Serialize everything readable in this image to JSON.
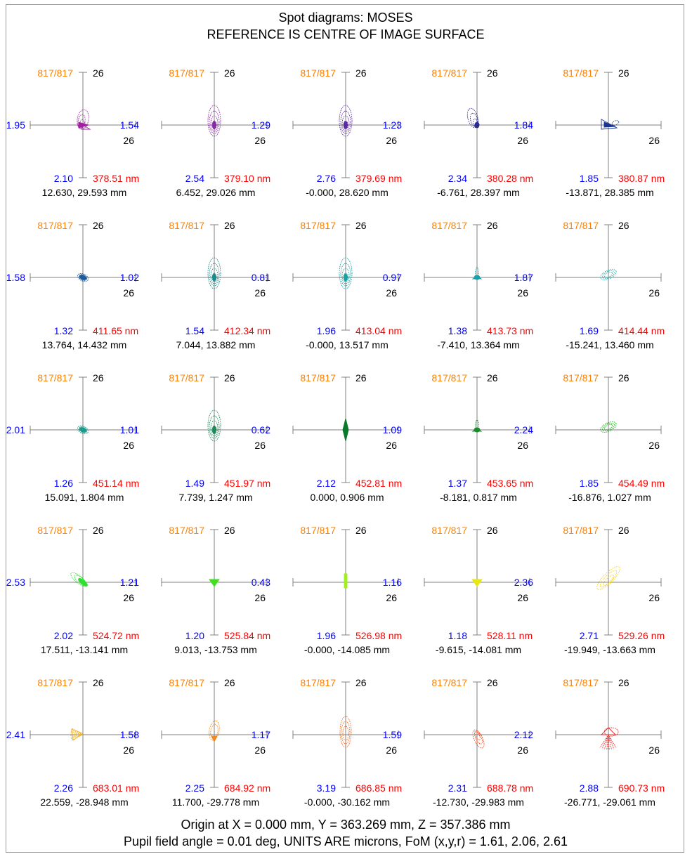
{
  "header": {
    "title": "Spot diagrams: MOSES",
    "subtitle": "REFERENCE IS CENTRE OF IMAGE SURFACE"
  },
  "footer": {
    "origin": "Origin at X =      0.000 mm, Y =    363.269 mm, Z =    357.386 mm",
    "pupil": "Pupil field angle =  0.01 deg, UNITS ARE microns, FoM (x,y,r) = 1.61, 2.06, 2.61"
  },
  "colors": {
    "ray_count": "#ff8000",
    "scale_value": "#0000ff",
    "wavelength": "#ff0000",
    "axis": "#808080",
    "text": "#000000"
  },
  "axis_scale_label": "26",
  "rows": [
    {
      "wavelength": "378.51 nm",
      "spots": [
        {
          "rays": "817/817",
          "left": "1.95",
          "right": "1.54",
          "bottom": "2.10",
          "wavelength": "378.51 nm",
          "coords": "12.630,  29.593 mm",
          "color": "#a020a0",
          "shape": "flame"
        },
        {
          "rays": "817/817",
          "left": "",
          "right": "1.29",
          "bottom": "2.54",
          "wavelength": "379.10 nm",
          "coords": "6.452,  29.026 mm",
          "color": "#8a2aa8",
          "shape": "vertical"
        },
        {
          "rays": "817/817",
          "left": "",
          "right": "1.23",
          "bottom": "2.76",
          "wavelength": "379.69 nm",
          "coords": "-0.000,  28.620 mm",
          "color": "#5a2aa0",
          "shape": "vertical"
        },
        {
          "rays": "817/817",
          "left": "",
          "right": "1.84",
          "bottom": "2.34",
          "wavelength": "380.28 nm",
          "coords": "-6.761,  28.397 mm",
          "color": "#2a2a90",
          "shape": "flame-left"
        },
        {
          "rays": "817/817",
          "left": "",
          "right": "",
          "bottom": "1.85",
          "wavelength": "380.87 nm",
          "coords": "-13.871,  28.385 mm",
          "color": "#1a3590",
          "shape": "bowtie"
        }
      ]
    },
    {
      "wavelength": "411.65 nm",
      "spots": [
        {
          "rays": "817/817",
          "left": "1.58",
          "right": "1.02",
          "bottom": "1.32",
          "wavelength": "411.65 nm",
          "coords": "13.764,  14.432 mm",
          "color": "#1a5aa0",
          "shape": "blob"
        },
        {
          "rays": "817/817",
          "left": "",
          "right": "0.81",
          "bottom": "1.54",
          "wavelength": "412.34 nm",
          "coords": "7.044,  13.882 mm",
          "color": "#1a8a8a",
          "shape": "vertical"
        },
        {
          "rays": "817/817",
          "left": "",
          "right": "0.97",
          "bottom": "1.96",
          "wavelength": "413.04 nm",
          "coords": "-0.000,  13.517 mm",
          "color": "#1aa0a0",
          "shape": "vertical"
        },
        {
          "rays": "817/817",
          "left": "",
          "right": "1.87",
          "bottom": "1.38",
          "wavelength": "413.73 nm",
          "coords": "-7.410,  13.364 mm",
          "color": "#1aa0a8",
          "shape": "small"
        },
        {
          "rays": "817/817",
          "left": "",
          "right": "",
          "bottom": "1.69",
          "wavelength": "414.44 nm",
          "coords": "-15.241,  13.460 mm",
          "color": "#20b4b4",
          "shape": "tilted"
        }
      ]
    },
    {
      "wavelength": "451.14 nm",
      "spots": [
        {
          "rays": "817/817",
          "left": "2.01",
          "right": "1.01",
          "bottom": "1.26",
          "wavelength": "451.14 nm",
          "coords": "15.091,   1.804 mm",
          "color": "#1a9a8a",
          "shape": "blob"
        },
        {
          "rays": "817/817",
          "left": "",
          "right": "0.62",
          "bottom": "1.49",
          "wavelength": "451.97 nm",
          "coords": "7.739,   1.247 mm",
          "color": "#1a8a5a",
          "shape": "vertical"
        },
        {
          "rays": "817/817",
          "left": "",
          "right": "1.09",
          "bottom": "2.12",
          "wavelength": "452.81 nm",
          "coords": "0.000,   0.906 mm",
          "color": "#0a7a2a",
          "shape": "diamond"
        },
        {
          "rays": "817/817",
          "left": "",
          "right": "2.24",
          "bottom": "1.37",
          "wavelength": "453.65 nm",
          "coords": "-8.181,   0.817 mm",
          "color": "#1a8a2a",
          "shape": "small"
        },
        {
          "rays": "817/817",
          "left": "",
          "right": "",
          "bottom": "1.85",
          "wavelength": "454.49 nm",
          "coords": "-16.876,   1.027 mm",
          "color": "#20aa20",
          "shape": "tilted"
        }
      ]
    },
    {
      "wavelength": "524.72 nm",
      "spots": [
        {
          "rays": "817/817",
          "left": "2.53",
          "right": "1.21",
          "bottom": "2.02",
          "wavelength": "524.72 nm",
          "coords": "17.511, -13.141 mm",
          "color": "#30e030",
          "shape": "blob-down"
        },
        {
          "rays": "817/817",
          "left": "",
          "right": "0.43",
          "bottom": "1.20",
          "wavelength": "525.84 nm",
          "coords": "9.013, -13.753 mm",
          "color": "#40e020",
          "shape": "triangle"
        },
        {
          "rays": "817/817",
          "left": "",
          "right": "1.16",
          "bottom": "1.96",
          "wavelength": "526.98 nm",
          "coords": "-0.000, -14.085 mm",
          "color": "#a0f020",
          "shape": "bar"
        },
        {
          "rays": "817/817",
          "left": "",
          "right": "2.36",
          "bottom": "1.18",
          "wavelength": "528.11 nm",
          "coords": "-9.615, -14.081 mm",
          "color": "#e8e810",
          "shape": "triangle"
        },
        {
          "rays": "817/817",
          "left": "",
          "right": "",
          "bottom": "2.71",
          "wavelength": "529.26 nm",
          "coords": "-19.949, -13.663 mm",
          "color": "#f0d020",
          "shape": "tilted-large"
        }
      ]
    },
    {
      "wavelength": "683.01 nm",
      "spots": [
        {
          "rays": "817/817",
          "left": "2.41",
          "right": "1.58",
          "bottom": "2.26",
          "wavelength": "683.01 nm",
          "coords": "22.559, -28.948 mm",
          "color": "#f0b020",
          "shape": "fan"
        },
        {
          "rays": "817/817",
          "left": "",
          "right": "1.17",
          "bottom": "2.25",
          "wavelength": "684.92 nm",
          "coords": "11.700, -29.778 mm",
          "color": "#f08a20",
          "shape": "drop"
        },
        {
          "rays": "817/817",
          "left": "",
          "right": "1.59",
          "bottom": "3.19",
          "wavelength": "686.85 nm",
          "coords": "-0.000, -30.162 mm",
          "color": "#f06a20",
          "shape": "drop-large"
        },
        {
          "rays": "817/817",
          "left": "",
          "right": "2.12",
          "bottom": "2.31",
          "wavelength": "688.78 nm",
          "coords": "-12.730, -29.983 mm",
          "color": "#f04a20",
          "shape": "drop-down"
        },
        {
          "rays": "817/817",
          "left": "",
          "right": "",
          "bottom": "2.88",
          "wavelength": "690.73 nm",
          "coords": "-26.771, -29.061 mm",
          "color": "#e82020",
          "shape": "fan-red"
        }
      ]
    }
  ]
}
